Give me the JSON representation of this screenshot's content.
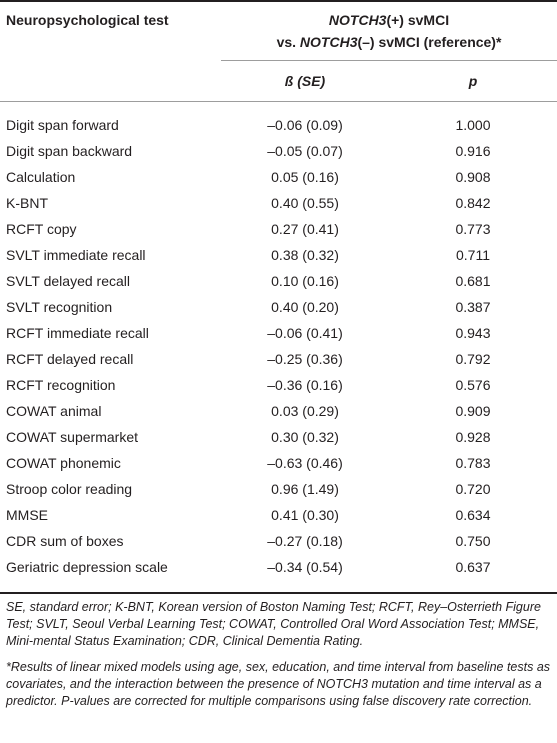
{
  "header": {
    "left": "Neuropsychological test",
    "group_line1_gene": "NOTCH3",
    "group_line1_rest": "(+) svMCI",
    "group_line2_prefix": "vs. ",
    "group_line2_gene": "NOTCH3",
    "group_line2_rest": "(–) svMCI (reference)*",
    "col_beta": "ß (SE)",
    "col_p": "p"
  },
  "rows": [
    {
      "name": "Digit span forward",
      "beta": "–0.06 (0.09)",
      "p": "1.000"
    },
    {
      "name": "Digit span backward",
      "beta": "–0.05 (0.07)",
      "p": "0.916"
    },
    {
      "name": "Calculation",
      "beta": "0.05 (0.16)",
      "p": "0.908"
    },
    {
      "name": "K-BNT",
      "beta": "0.40 (0.55)",
      "p": "0.842"
    },
    {
      "name": "RCFT copy",
      "beta": "0.27 (0.41)",
      "p": "0.773"
    },
    {
      "name": "SVLT immediate recall",
      "beta": "0.38 (0.32)",
      "p": "0.711"
    },
    {
      "name": "SVLT delayed recall",
      "beta": "0.10 (0.16)",
      "p": "0.681"
    },
    {
      "name": "SVLT recognition",
      "beta": "0.40 (0.20)",
      "p": "0.387"
    },
    {
      "name": "RCFT immediate recall",
      "beta": "–0.06 (0.41)",
      "p": "0.943"
    },
    {
      "name": "RCFT delayed recall",
      "beta": "–0.25 (0.36)",
      "p": "0.792"
    },
    {
      "name": "RCFT recognition",
      "beta": "–0.36 (0.16)",
      "p": "0.576"
    },
    {
      "name": "COWAT animal",
      "beta": "0.03 (0.29)",
      "p": "0.909"
    },
    {
      "name": "COWAT supermarket",
      "beta": "0.30 (0.32)",
      "p": "0.928"
    },
    {
      "name": "COWAT phonemic",
      "beta": "–0.63 (0.46)",
      "p": "0.783"
    },
    {
      "name": "Stroop color reading",
      "beta": "0.96 (1.49)",
      "p": "0.720"
    },
    {
      "name": "MMSE",
      "beta": "0.41 (0.30)",
      "p": "0.634"
    },
    {
      "name": "CDR sum of boxes",
      "beta": "–0.27 (0.18)",
      "p": "0.750"
    },
    {
      "name": "Geriatric depression scale",
      "beta": "–0.34 (0.54)",
      "p": "0.637"
    }
  ],
  "footnotes": {
    "abbreviations": "SE, standard error; K-BNT, Korean version of Boston Naming Test; RCFT, Rey–Osterrieth Figure Test; SVLT, Seoul Verbal Learning Test; COWAT, Controlled Oral Word Association Test; MMSE, Mini-mental Status Examination; CDR, Clinical Dementia Rating.",
    "asterisk": "*Results of linear mixed models using age, sex, education, and time interval from baseline tests as covariates, and the interaction between the presence of NOTCH3 mutation and time interval as a predictor. P-values are corrected for multiple comparisons using false discovery rate correction."
  }
}
